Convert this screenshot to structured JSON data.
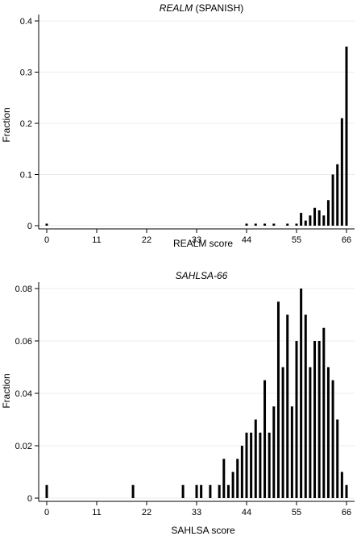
{
  "chart_data": [
    {
      "type": "bar",
      "title_italic": "REALM",
      "title_rest": " (SPANISH)",
      "xlabel": "REALM score",
      "ylabel": "Fraction",
      "xlim": [
        0,
        66
      ],
      "ylim": [
        0,
        0.4
      ],
      "xticks": [
        "0",
        "11",
        "22",
        "33",
        "44",
        "55",
        "66"
      ],
      "yticks": [
        "0",
        "0.1",
        "0.2",
        "0.3",
        "0.4"
      ],
      "grid": true,
      "bar_color": "#000000",
      "x": [
        0,
        44,
        46,
        48,
        50,
        53,
        55,
        56,
        57,
        58,
        59,
        60,
        61,
        62,
        63,
        64,
        65,
        66
      ],
      "values": [
        0.004,
        0.004,
        0.004,
        0.004,
        0.004,
        0.004,
        0.004,
        0.025,
        0.01,
        0.02,
        0.035,
        0.03,
        0.02,
        0.05,
        0.1,
        0.12,
        0.21,
        0.35
      ]
    },
    {
      "type": "bar",
      "title_italic": "SAHLSA-66",
      "title_rest": "",
      "xlabel": "SAHLSA score",
      "ylabel": "Fraction",
      "xlim": [
        0,
        66
      ],
      "ylim": [
        0,
        0.08
      ],
      "xticks": [
        "0",
        "11",
        "22",
        "33",
        "44",
        "55",
        "66"
      ],
      "yticks": [
        "0",
        "0.02",
        "0.04",
        "0.06",
        "0.08"
      ],
      "grid": true,
      "bar_color": "#000000",
      "x": [
        0,
        19,
        30,
        33,
        34,
        36,
        38,
        39,
        40,
        41,
        42,
        43,
        44,
        45,
        46,
        47,
        48,
        49,
        50,
        51,
        52,
        53,
        54,
        55,
        56,
        57,
        58,
        59,
        60,
        61,
        62,
        63,
        64,
        65,
        66
      ],
      "values": [
        0.005,
        0.005,
        0.005,
        0.005,
        0.005,
        0.005,
        0.005,
        0.015,
        0.005,
        0.01,
        0.015,
        0.02,
        0.025,
        0.025,
        0.03,
        0.025,
        0.045,
        0.025,
        0.035,
        0.075,
        0.05,
        0.07,
        0.035,
        0.06,
        0.08,
        0.07,
        0.05,
        0.06,
        0.06,
        0.065,
        0.05,
        0.045,
        0.03,
        0.01,
        0.005
      ]
    }
  ]
}
